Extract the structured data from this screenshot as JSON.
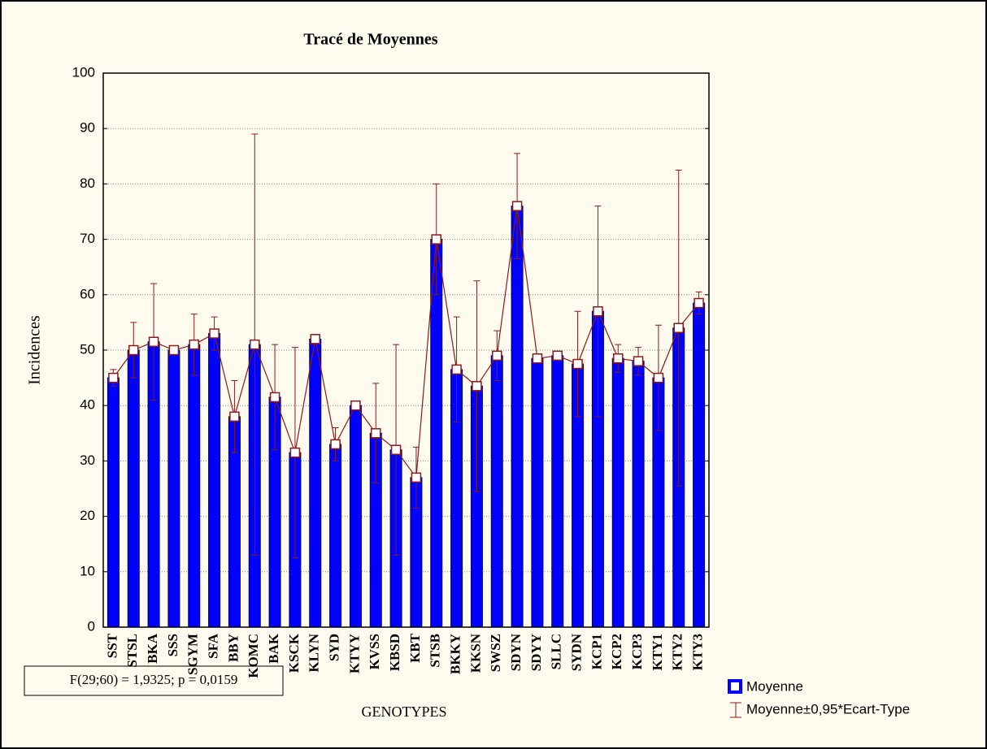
{
  "chart_data": {
    "type": "bar",
    "title": "Tracé de Moyennes",
    "xlabel": "GENOTYPES",
    "ylabel": "Incidences",
    "annotation": "F(29;60) = 1,9325; p = 0,0159",
    "categories": [
      "SST",
      "STSL",
      "BKA",
      "SSS",
      "SGYM",
      "SFA",
      "BBY",
      "KOMC",
      "BAK",
      "KSCK",
      "KLYN",
      "SYD",
      "KTYY",
      "KVSS",
      "KBSD",
      "KBT",
      "STSB",
      "BKKY",
      "KKSN",
      "SWSZ",
      "SDYN",
      "SDYY",
      "SLLC",
      "SYDN",
      "KCP1",
      "KCP2",
      "KCP3",
      "KTY1",
      "KTY2",
      "KTY3"
    ],
    "series": [
      {
        "name": "Moyenne",
        "color": "#0000ff",
        "line_color": "#8b1a1a",
        "values": [
          45,
          50,
          51.5,
          50,
          51,
          53,
          38,
          51,
          41.5,
          31.5,
          52,
          33,
          40,
          35,
          32,
          27,
          70,
          46.5,
          43.5,
          49,
          76,
          48.5,
          49,
          47.5,
          57,
          48.5,
          48,
          45,
          54,
          58.5
        ],
        "errors": [
          1.5,
          5,
          10.5,
          0.8,
          5.5,
          3,
          6.5,
          38,
          9.5,
          19,
          0.8,
          3,
          0.5,
          9,
          19,
          5.5,
          10,
          9.5,
          19,
          4.5,
          9.5,
          0.8,
          0.5,
          9.5,
          19,
          2.5,
          2.5,
          9.5,
          28.5,
          2
        ],
        "error_name": "Moyenne±0,95*Ecart-Type"
      }
    ],
    "ylim": [
      0,
      100
    ],
    "yticks": [
      0,
      10,
      20,
      30,
      40,
      50,
      60,
      70,
      80,
      90,
      100
    ],
    "grid": true
  }
}
